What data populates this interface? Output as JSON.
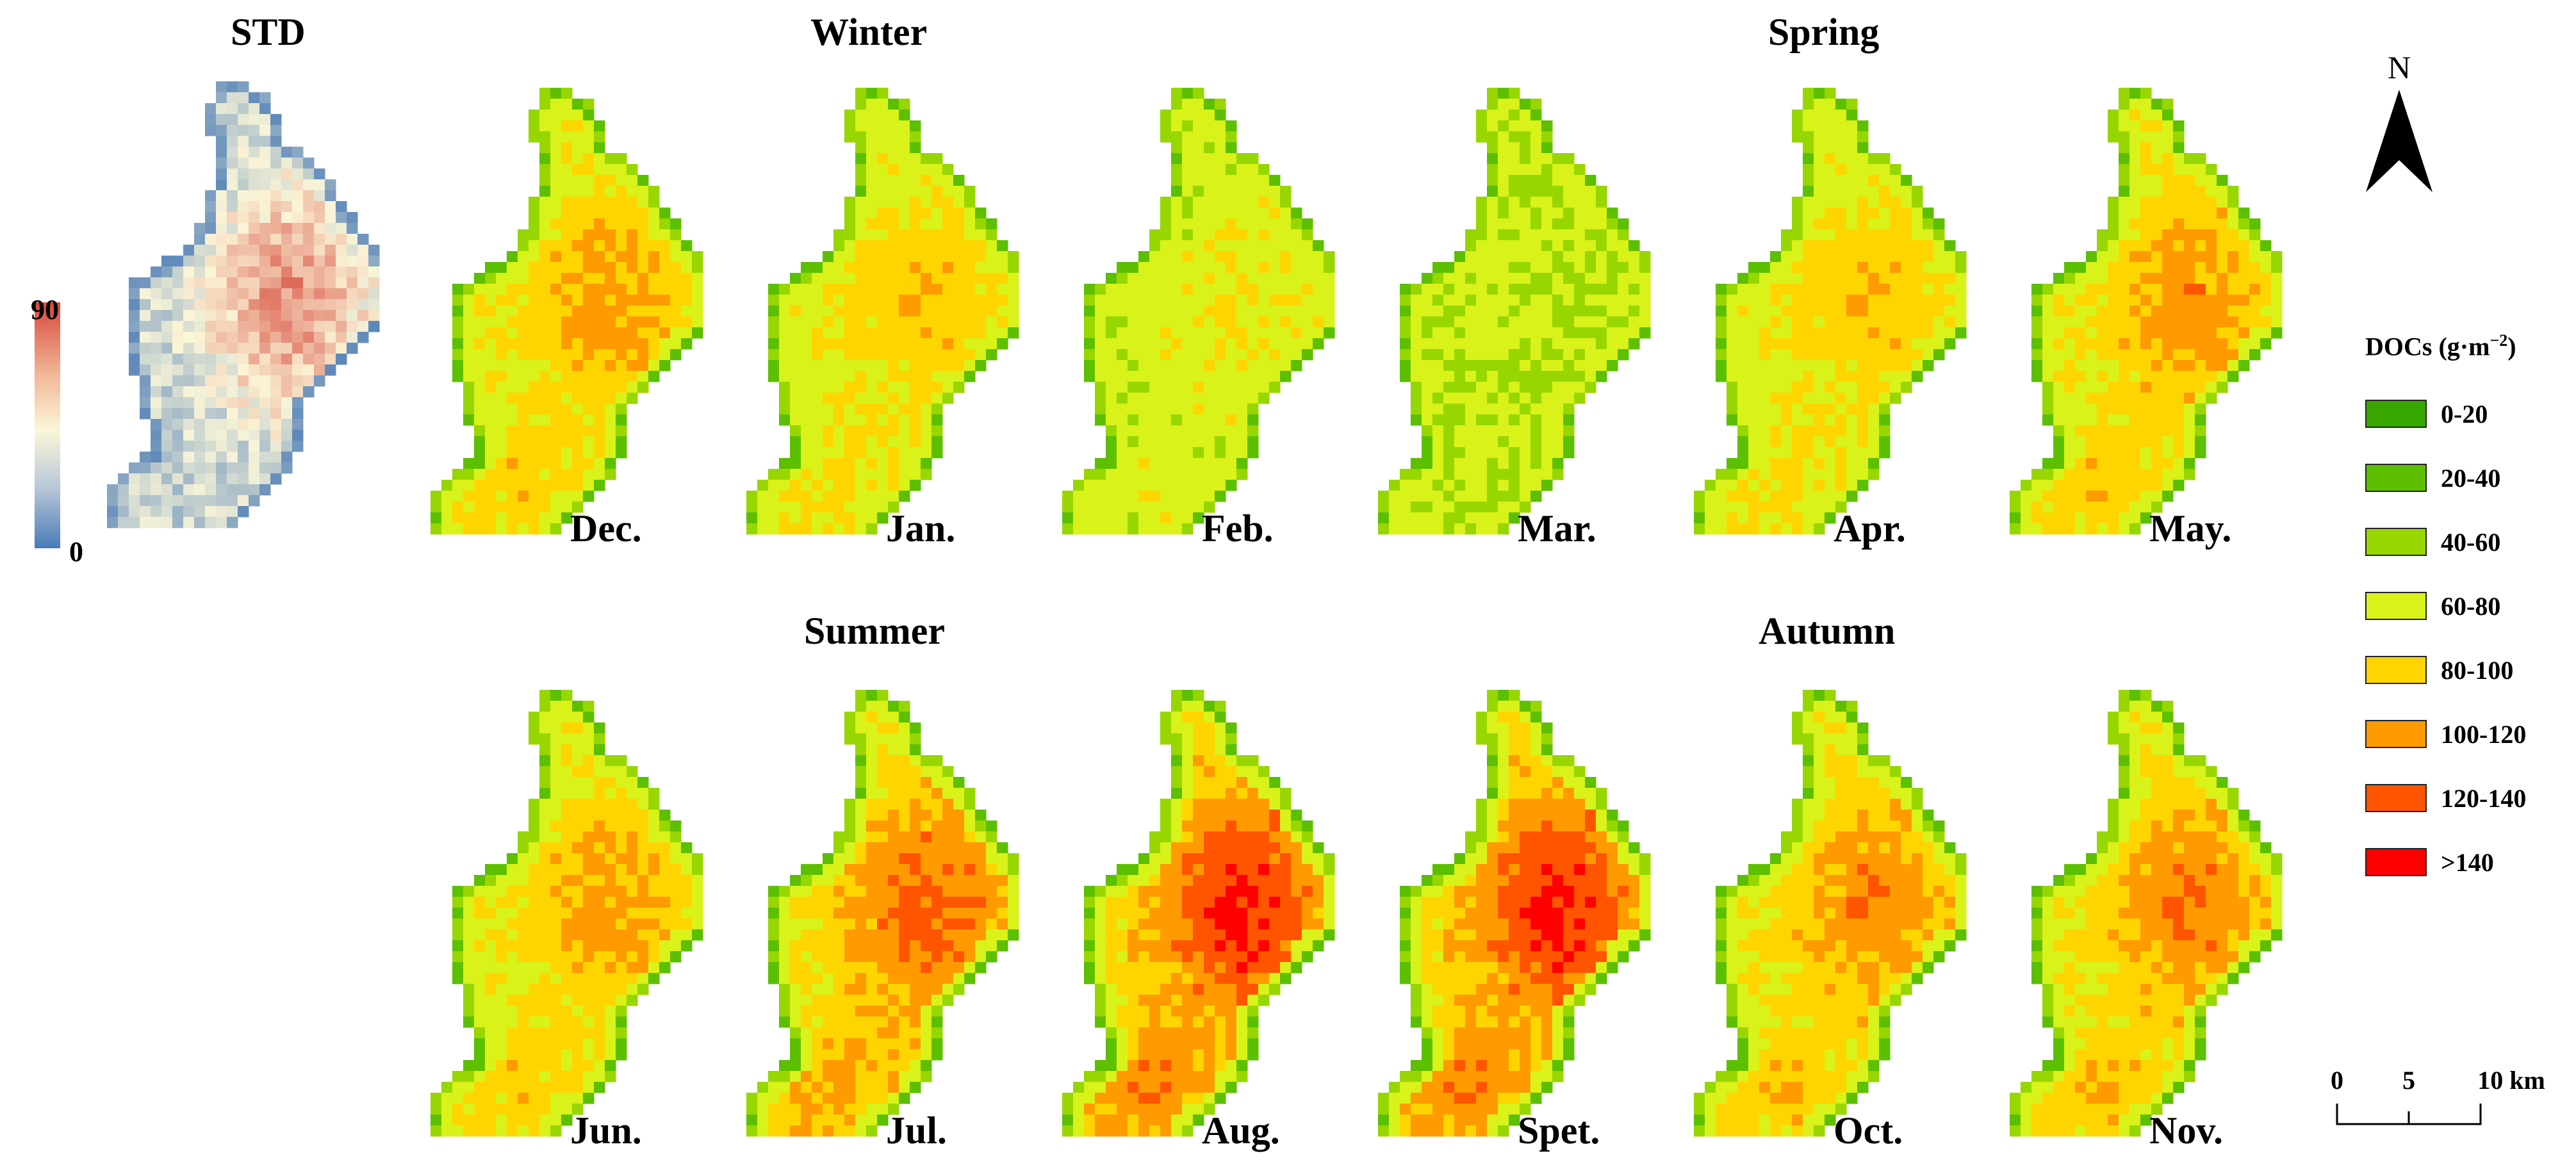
{
  "std": {
    "title": "STD",
    "max_label": "90",
    "min_label": "0",
    "color_low": "#4a7bb7",
    "color_mid": "#fbf6d8",
    "color_high": "#d7473a"
  },
  "seasons": {
    "winter": "Winter",
    "spring": "Spring",
    "summer": "Summer",
    "autumn": "Autumn"
  },
  "months": [
    {
      "label": "Dec.",
      "level": 3.5
    },
    {
      "label": "Jan.",
      "level": 3.0
    },
    {
      "label": "Feb.",
      "level": 2.3
    },
    {
      "label": "Mar.",
      "level": 1.6
    },
    {
      "label": "Apr.",
      "level": 3.0
    },
    {
      "label": "May.",
      "level": 3.6
    },
    {
      "label": "Jun.",
      "level": 3.5
    },
    {
      "label": "Jul.",
      "level": 4.3
    },
    {
      "label": "Aug.",
      "level": 5.0
    },
    {
      "label": "Spet.",
      "level": 5.0
    },
    {
      "label": "Oct.",
      "level": 3.8
    },
    {
      "label": "Nov.",
      "level": 3.9
    }
  ],
  "legend": {
    "title_main": "DOCs (g·m",
    "title_sup": "−2",
    "title_end": ")",
    "items": [
      {
        "label": "0-20",
        "color": "#38a800"
      },
      {
        "label": "20-40",
        "color": "#5cbf00"
      },
      {
        "label": "40-60",
        "color": "#98d600"
      },
      {
        "label": "60-80",
        "color": "#d9f21a"
      },
      {
        "label": "80-100",
        "color": "#ffd500"
      },
      {
        "label": "100-120",
        "color": "#ff9a00"
      },
      {
        "label": "120-140",
        "color": "#ff5500"
      },
      {
        "label": ">140",
        "color": "#ff0000"
      }
    ]
  },
  "north": {
    "label": "N"
  },
  "scale": {
    "labels": [
      "0",
      "5",
      "10 km"
    ]
  }
}
